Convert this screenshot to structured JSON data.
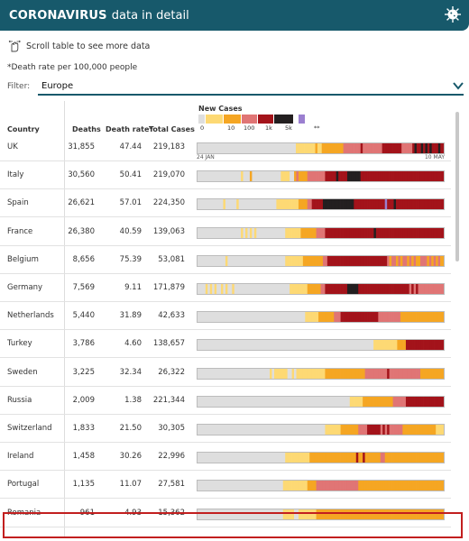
{
  "header": {
    "title_strong": "CORONAVIRUS",
    "title_rest": "data in detail"
  },
  "hint": "Scroll table to see more data",
  "note": "*Death rate per 100,000 people",
  "filter": {
    "label": "Filter:",
    "value": "Europe"
  },
  "legend": {
    "title": "New Cases",
    "ticks": [
      "0",
      "10",
      "100",
      "1k",
      "5k",
      "**"
    ],
    "colors": [
      "#dedede",
      "#fdd974",
      "#f5a623",
      "#e07575",
      "#a3131a",
      "#231f20",
      "#9b7fd0"
    ]
  },
  "columns": {
    "country": "Country",
    "deaths": "Deaths",
    "rate": "Death rate*",
    "total": "Total Cases"
  },
  "dates": {
    "start": "24 JAN",
    "end": "10 MAY"
  },
  "rows": [
    {
      "country": "UK",
      "deaths": "31,855",
      "rate": "47.44",
      "total": "219,183",
      "timeline": "0000000000000000000000000000000000000000000000111111111211222222222233333333433333333344444444433333454454545444544"
    },
    {
      "country": "Italy",
      "deaths": "30,560",
      "rate": "50.41",
      "total": "219,070",
      "timeline": "0000000000000000000010002000000000000011110023222233333333444445444455555544444444444444444444444444444444444444"
    },
    {
      "country": "Spain",
      "deaths": "26,621",
      "rate": "57.01",
      "total": "224,350",
      "timeline": "0000000000001000001000000000000000001111111111222233444445555555555555544444444444444644454444444444444444444444"
    },
    {
      "country": "France",
      "deaths": "26,380",
      "rate": "40.59",
      "total": "139,063",
      "timeline": "0000000000000000000010101010000000000000111111122222223333444444444444444444444454444444444444444444444444444444"
    },
    {
      "country": "Belgium",
      "deaths": "8,656",
      "rate": "75.39",
      "total": "53,081",
      "timeline": "0000000000000100000000000000000000000000111111112222222223344444444444444444444444444432332323323232233323232322"
    },
    {
      "country": "Germany",
      "deaths": "7,569",
      "rate": "9.11",
      "total": "171,879",
      "timeline": "0000101010010100100000000000000000000000001111111122222233444444444455555444444444444444444444443434333333333333"
    },
    {
      "country": "Netherlands",
      "deaths": "5,440",
      "rate": "31.89",
      "total": "42,633",
      "timeline": "0000000000000000000000000000000000000000000000000111111222222233344444444444444444333333333322222222222222222222"
    },
    {
      "country": "Turkey",
      "deaths": "3,786",
      "rate": "4.60",
      "total": "138,657",
      "timeline": "0000000000000000000000000000000000000000000000000000000000000000000000000000000000111111111112222444444444444444444"
    },
    {
      "country": "Sweden",
      "deaths": "3,225",
      "rate": "32.34",
      "total": "26,322",
      "timeline": "0000000000000000000000000000000001011111100101111111111111222222222222222222333333333343333333333333322222222222"
    },
    {
      "country": "Russia",
      "deaths": "2,009",
      "rate": "1.38",
      "total": "221,344",
      "timeline": "0000000000000000000000000000000000000000000000000000000000000000000000011111122222222222222333333444444444444444444"
    },
    {
      "country": "Switzerland",
      "deaths": "1,833",
      "rate": "21.50",
      "total": "30,305",
      "timeline": "0000000000000000000000000000000000000000000000000000000000111111122222222333344444434343333332222222222222221111"
    },
    {
      "country": "Ireland",
      "deaths": "1,458",
      "rate": "30.26",
      "total": "22,996",
      "timeline": "0000000000000000000000000000000000000000111111111112222222222222222222224224222222233222222222222222222222222222"
    },
    {
      "country": "Portugal",
      "deaths": "1,135",
      "rate": "11.07",
      "total": "27,581",
      "timeline": "0000000000000000000000000000000000000001111111111122223333333333333333333222222222222222222222222222222222222222"
    },
    {
      "country": "Romania",
      "deaths": "961",
      "rate": "4.93",
      "total": "15,362",
      "timeline": "0000000000000000000000000000000000000001111100111111112222222222222222222222222222222222222222222222222222222222"
    }
  ]
}
